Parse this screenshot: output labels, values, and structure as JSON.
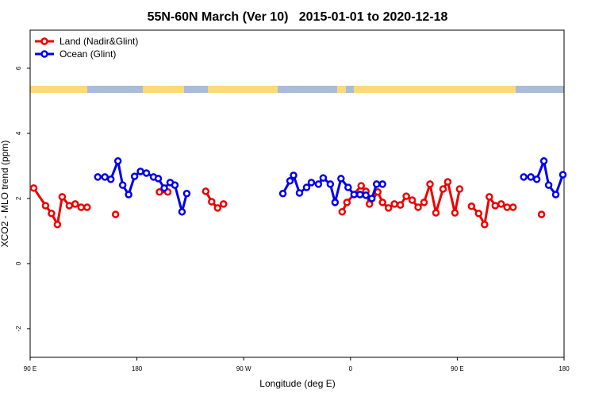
{
  "chart_data": {
    "type": "line",
    "title": "55N-60N March (Ver 10)   2015-01-01 to 2020-12-18",
    "x_label": "Longitude (deg E)",
    "y_label": "XCO2 - MLO trend (ppm)",
    "xlim": [
      90,
      540
    ],
    "xticks": [
      {
        "value": 90,
        "label": "90 E"
      },
      180,
      {
        "value": 270,
        "label": "90 W"
      },
      {
        "value": 360,
        "label": "0"
      },
      {
        "value": 450,
        "label": "90 E"
      },
      {
        "value": 540,
        "label": "180"
      }
    ],
    "ylim": [
      -2.88,
      7.17
    ],
    "yticks": [
      6,
      4,
      2,
      0,
      -2
    ],
    "grid": false,
    "legend": "top-left",
    "series": [
      {
        "name": "Land (Nadir&Glint)",
        "color": "#ee0000",
        "x": [
          93,
          103,
          108,
          113,
          117,
          123,
          128,
          133,
          138,
          null,
          162,
          null,
          199,
          206,
          null,
          238,
          243,
          248,
          253,
          null,
          353,
          357,
          369,
          373,
          376,
          383,
          387,
          392,
          397,
          402,
          407,
          412,
          417,
          422,
          427,
          432,
          438,
          442,
          448,
          452,
          null,
          462,
          468,
          473,
          477,
          482,
          487,
          492,
          497,
          null,
          521
        ],
        "values": [
          2.32,
          1.78,
          1.54,
          1.2,
          2.05,
          1.78,
          1.83,
          1.73,
          1.73,
          null,
          1.51,
          null,
          2.2,
          2.2,
          null,
          2.22,
          1.9,
          1.71,
          1.83,
          null,
          1.59,
          1.88,
          2.39,
          2.22,
          1.83,
          2.2,
          1.88,
          1.71,
          1.83,
          1.8,
          2.07,
          1.95,
          1.73,
          1.88,
          2.44,
          1.56,
          2.29,
          2.51,
          1.56,
          2.29,
          null,
          1.76,
          1.54,
          1.2,
          2.05,
          1.78,
          1.83,
          1.73,
          1.73,
          null,
          1.51
        ]
      },
      {
        "name": "Ocean (Glint)",
        "color": "#0000ee",
        "x": [
          147,
          153,
          158,
          164,
          168,
          173,
          178,
          183,
          188,
          194,
          198,
          203,
          208,
          212,
          218,
          222,
          null,
          303,
          309,
          312,
          317,
          323,
          327,
          333,
          337,
          343,
          347,
          352,
          358,
          363,
          368,
          373,
          378,
          382,
          387,
          null,
          506,
          512,
          517,
          523,
          527,
          533,
          539
        ],
        "values": [
          2.66,
          2.66,
          2.59,
          3.15,
          2.41,
          2.12,
          2.68,
          2.83,
          2.78,
          2.66,
          2.61,
          2.32,
          2.49,
          2.41,
          1.59,
          2.15,
          null,
          2.15,
          2.54,
          2.71,
          2.17,
          2.34,
          2.49,
          2.44,
          2.63,
          2.44,
          1.88,
          2.61,
          2.34,
          2.12,
          2.12,
          2.1,
          2.0,
          2.44,
          2.44,
          null,
          2.66,
          2.66,
          2.59,
          3.15,
          2.41,
          2.12,
          2.73
        ]
      }
    ]
  }
}
